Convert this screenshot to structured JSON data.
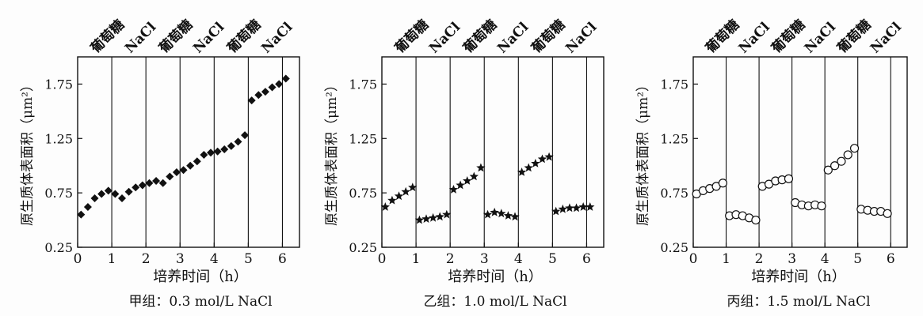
{
  "chart_data": [
    {
      "type": "scatter",
      "caption": "甲组：0.3 mol/L NaCl",
      "ylabel": "原生质体表面积（μm²）",
      "xlabel": "培养时间（h）",
      "xlim": [
        0,
        6.5
      ],
      "ylim": [
        0.25,
        2.0
      ],
      "xticks": [
        "0",
        "1",
        "2",
        "3",
        "4",
        "5",
        "6"
      ],
      "yticks": [
        "0.25",
        "0.75",
        "1.25",
        "1.75"
      ],
      "treatment_labels": [
        "葡萄糖",
        "NaCl",
        "葡萄糖",
        "NaCl",
        "葡萄糖",
        "NaCl"
      ],
      "treatment_boundaries": [
        0,
        1,
        2,
        3,
        4,
        5,
        6
      ],
      "marker": "filled-diamond",
      "points": [
        [
          0.1,
          0.55
        ],
        [
          0.3,
          0.62
        ],
        [
          0.5,
          0.7
        ],
        [
          0.7,
          0.74
        ],
        [
          0.9,
          0.77
        ],
        [
          1.1,
          0.74
        ],
        [
          1.3,
          0.7
        ],
        [
          1.5,
          0.76
        ],
        [
          1.7,
          0.8
        ],
        [
          1.9,
          0.82
        ],
        [
          2.1,
          0.84
        ],
        [
          2.3,
          0.86
        ],
        [
          2.5,
          0.84
        ],
        [
          2.7,
          0.9
        ],
        [
          2.9,
          0.94
        ],
        [
          3.1,
          0.96
        ],
        [
          3.3,
          1.0
        ],
        [
          3.5,
          1.04
        ],
        [
          3.7,
          1.1
        ],
        [
          3.9,
          1.12
        ],
        [
          4.1,
          1.13
        ],
        [
          4.3,
          1.15
        ],
        [
          4.5,
          1.18
        ],
        [
          4.7,
          1.22
        ],
        [
          4.9,
          1.28
        ],
        [
          5.1,
          1.6
        ],
        [
          5.3,
          1.65
        ],
        [
          5.5,
          1.68
        ],
        [
          5.7,
          1.72
        ],
        [
          5.9,
          1.75
        ],
        [
          6.1,
          1.8
        ]
      ]
    },
    {
      "type": "scatter",
      "caption": "乙组：1.0 mol/L NaCl",
      "ylabel": "原生质体表面积（μm²）",
      "xlabel": "培养时间（h）",
      "xlim": [
        0,
        6.5
      ],
      "ylim": [
        0.25,
        2.0
      ],
      "xticks": [
        "0",
        "1",
        "2",
        "3",
        "4",
        "5",
        "6"
      ],
      "yticks": [
        "0.25",
        "0.75",
        "1.25",
        "1.75"
      ],
      "treatment_labels": [
        "葡萄糖",
        "NaCl",
        "葡萄糖",
        "NaCl",
        "葡萄糖",
        "NaCl"
      ],
      "treatment_boundaries": [
        0,
        1,
        2,
        3,
        4,
        5,
        6
      ],
      "marker": "filled-star",
      "points": [
        [
          0.1,
          0.62
        ],
        [
          0.3,
          0.68
        ],
        [
          0.5,
          0.72
        ],
        [
          0.7,
          0.76
        ],
        [
          0.9,
          0.8
        ],
        [
          1.1,
          0.5
        ],
        [
          1.3,
          0.51
        ],
        [
          1.5,
          0.52
        ],
        [
          1.7,
          0.53
        ],
        [
          1.9,
          0.55
        ],
        [
          2.1,
          0.78
        ],
        [
          2.3,
          0.82
        ],
        [
          2.5,
          0.86
        ],
        [
          2.7,
          0.9
        ],
        [
          2.9,
          0.98
        ],
        [
          3.1,
          0.55
        ],
        [
          3.3,
          0.57
        ],
        [
          3.5,
          0.56
        ],
        [
          3.7,
          0.54
        ],
        [
          3.9,
          0.53
        ],
        [
          4.1,
          0.94
        ],
        [
          4.3,
          0.98
        ],
        [
          4.5,
          1.02
        ],
        [
          4.7,
          1.06
        ],
        [
          4.9,
          1.08
        ],
        [
          5.1,
          0.58
        ],
        [
          5.3,
          0.6
        ],
        [
          5.5,
          0.61
        ],
        [
          5.7,
          0.61
        ],
        [
          5.9,
          0.62
        ],
        [
          6.1,
          0.62
        ]
      ]
    },
    {
      "type": "scatter",
      "caption": "丙组：1.5 mol/L NaCl",
      "ylabel": "原生质体表面积（μm²）",
      "xlabel": "培养时间（h）",
      "xlim": [
        0,
        6.5
      ],
      "ylim": [
        0.25,
        2.0
      ],
      "xticks": [
        "0",
        "1",
        "2",
        "3",
        "4",
        "5",
        "6"
      ],
      "yticks": [
        "0.25",
        "0.75",
        "1.25",
        "1.75"
      ],
      "treatment_labels": [
        "葡萄糖",
        "NaCl",
        "葡萄糖",
        "NaCl",
        "葡萄糖",
        "NaCl"
      ],
      "treatment_boundaries": [
        0,
        1,
        2,
        3,
        4,
        5,
        6
      ],
      "marker": "open-circle",
      "points": [
        [
          0.1,
          0.74
        ],
        [
          0.3,
          0.77
        ],
        [
          0.5,
          0.79
        ],
        [
          0.7,
          0.81
        ],
        [
          0.9,
          0.84
        ],
        [
          1.1,
          0.54
        ],
        [
          1.3,
          0.55
        ],
        [
          1.5,
          0.54
        ],
        [
          1.7,
          0.52
        ],
        [
          1.9,
          0.5
        ],
        [
          2.1,
          0.81
        ],
        [
          2.3,
          0.83
        ],
        [
          2.5,
          0.86
        ],
        [
          2.7,
          0.87
        ],
        [
          2.9,
          0.88
        ],
        [
          3.1,
          0.66
        ],
        [
          3.3,
          0.64
        ],
        [
          3.5,
          0.63
        ],
        [
          3.7,
          0.64
        ],
        [
          3.9,
          0.63
        ],
        [
          4.1,
          0.96
        ],
        [
          4.3,
          1.0
        ],
        [
          4.5,
          1.04
        ],
        [
          4.7,
          1.1
        ],
        [
          4.9,
          1.16
        ],
        [
          5.1,
          0.6
        ],
        [
          5.3,
          0.59
        ],
        [
          5.5,
          0.58
        ],
        [
          5.7,
          0.58
        ],
        [
          5.9,
          0.56
        ]
      ]
    }
  ]
}
